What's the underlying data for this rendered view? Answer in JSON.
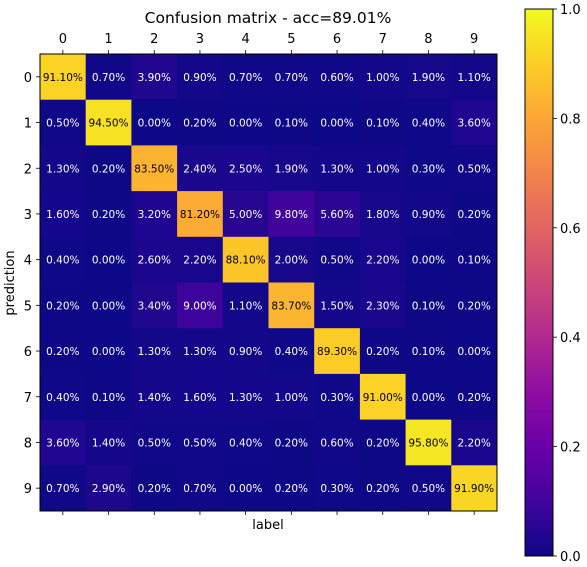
{
  "chart_data": {
    "type": "heatmap",
    "title": "Confusion matrix - acc=89.01%",
    "xlabel": "label",
    "ylabel": "prediction",
    "x_ticks": [
      "0",
      "1",
      "2",
      "3",
      "4",
      "5",
      "6",
      "7",
      "8",
      "9"
    ],
    "y_ticks": [
      "0",
      "1",
      "2",
      "3",
      "4",
      "5",
      "6",
      "7",
      "8",
      "9"
    ],
    "value_labels": [
      [
        "91.10%",
        "0.70%",
        "3.90%",
        "0.90%",
        "0.70%",
        "0.70%",
        "0.60%",
        "1.00%",
        "1.90%",
        "1.10%"
      ],
      [
        "0.50%",
        "94.50%",
        "0.00%",
        "0.20%",
        "0.00%",
        "0.10%",
        "0.00%",
        "0.10%",
        "0.40%",
        "3.60%"
      ],
      [
        "1.30%",
        "0.20%",
        "83.50%",
        "2.40%",
        "2.50%",
        "1.90%",
        "1.30%",
        "1.00%",
        "0.30%",
        "0.50%"
      ],
      [
        "1.60%",
        "0.20%",
        "3.20%",
        "81.20%",
        "5.00%",
        "9.80%",
        "5.60%",
        "1.80%",
        "0.90%",
        "0.20%"
      ],
      [
        "0.40%",
        "0.00%",
        "2.60%",
        "2.20%",
        "88.10%",
        "2.00%",
        "0.50%",
        "2.20%",
        "0.00%",
        "0.10%"
      ],
      [
        "0.20%",
        "0.00%",
        "3.40%",
        "9.00%",
        "1.10%",
        "83.70%",
        "1.50%",
        "2.30%",
        "0.10%",
        "0.20%"
      ],
      [
        "0.20%",
        "0.00%",
        "1.30%",
        "1.30%",
        "0.90%",
        "0.40%",
        "89.30%",
        "0.20%",
        "0.10%",
        "0.00%"
      ],
      [
        "0.40%",
        "0.10%",
        "1.40%",
        "1.60%",
        "1.30%",
        "1.00%",
        "0.30%",
        "91.00%",
        "0.00%",
        "0.20%"
      ],
      [
        "3.60%",
        "1.40%",
        "0.50%",
        "0.50%",
        "0.40%",
        "0.20%",
        "0.60%",
        "0.20%",
        "95.80%",
        "2.20%"
      ],
      [
        "0.70%",
        "2.90%",
        "0.20%",
        "0.70%",
        "0.00%",
        "0.20%",
        "0.30%",
        "0.20%",
        "0.50%",
        "91.90%"
      ]
    ],
    "colormap": "plasma",
    "colorbar": {
      "range": [
        0,
        1
      ],
      "ticks": [
        "0.0",
        "0.2",
        "0.4",
        "0.6",
        "0.8",
        "1.0"
      ],
      "tick_values": [
        0,
        0.2,
        0.4,
        0.6,
        0.8,
        1.0
      ]
    },
    "grid": false,
    "colors": {
      "cell_text_light": "#ffffff",
      "cell_text_dark": "#000000",
      "axis": "#000000"
    }
  }
}
